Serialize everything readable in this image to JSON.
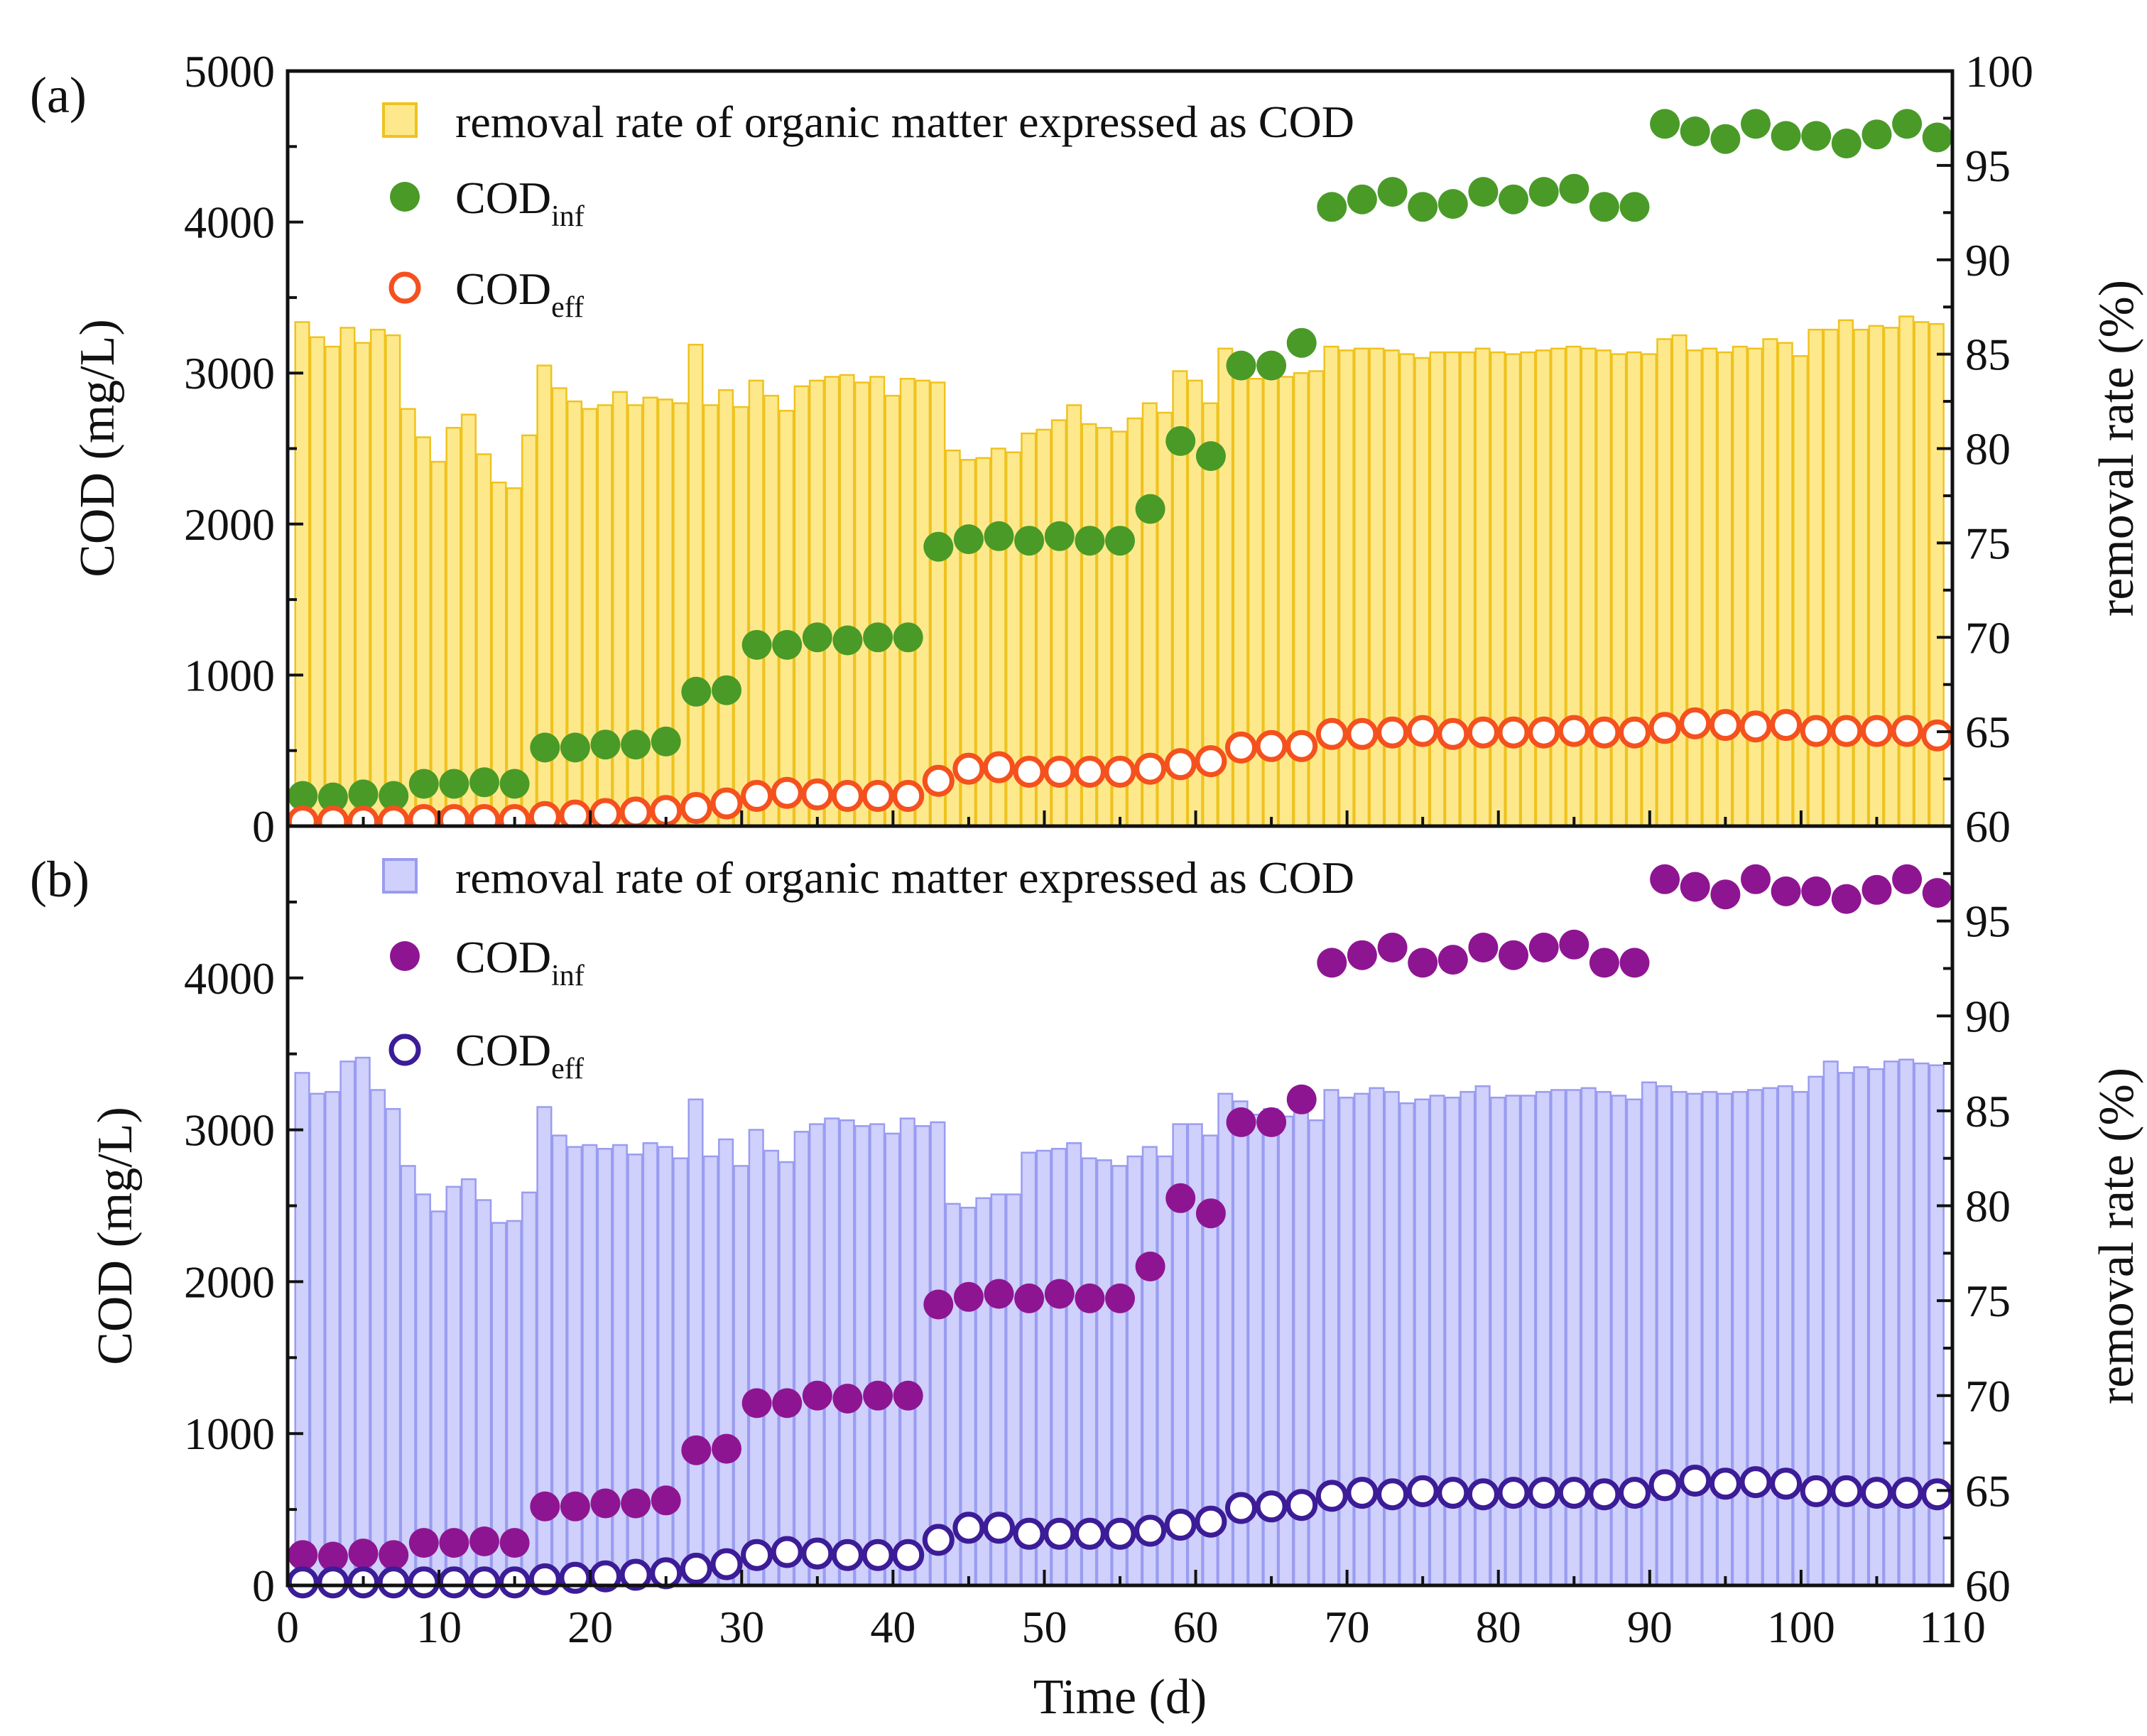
{
  "figure": {
    "xlabel": "Time (d)",
    "xticks": [
      "0",
      "10",
      "20",
      "30",
      "40",
      "50",
      "60",
      "70",
      "80",
      "90",
      "100",
      "110"
    ],
    "xlim": [
      0,
      110
    ]
  },
  "colors": {
    "a_bar_fill": "#fde98c",
    "a_bar_edge": "#efc21e",
    "a_inf": "#4a9a28",
    "a_eff": "#f4511e",
    "b_bar_fill": "#cfd0fb",
    "b_bar_edge": "#9a9cf0",
    "b_inf": "#8e1592",
    "b_eff": "#3c1c97"
  },
  "chart_data": [
    {
      "type": "bar+scatter",
      "panel_label": "(a)",
      "ylabel_left": "COD (mg/L)",
      "ylabel_right": "removal rate (%)",
      "ylim_left": [
        0,
        5000
      ],
      "ylim_right": [
        60,
        100
      ],
      "yticks_left": [
        "0",
        "1000",
        "2000",
        "3000",
        "4000",
        "5000"
      ],
      "yticks_right": [
        "60",
        "65",
        "70",
        "75",
        "80",
        "85",
        "90",
        "95",
        "100"
      ],
      "legend": {
        "bar": "removal rate of organic matter expressed as COD",
        "inf_main": "COD",
        "inf_sub": "inf",
        "eff_main": "COD",
        "eff_sub": "eff"
      },
      "bar_days": [
        1,
        2,
        3,
        4,
        5,
        6,
        7,
        8,
        9,
        10,
        11,
        12,
        13,
        14,
        15,
        16,
        17,
        18,
        19,
        20,
        21,
        22,
        23,
        24,
        25,
        26,
        27,
        28,
        29,
        30,
        31,
        32,
        33,
        34,
        35,
        36,
        37,
        38,
        39,
        40,
        41,
        42,
        43,
        44,
        45,
        46,
        47,
        48,
        49,
        50,
        51,
        52,
        53,
        54,
        55,
        56,
        57,
        58,
        59,
        60,
        61,
        62,
        63,
        64,
        65,
        66,
        67,
        68,
        69,
        70,
        71,
        72,
        73,
        74,
        75,
        76,
        77,
        78,
        79,
        80,
        81,
        82,
        83,
        84,
        85,
        86,
        87,
        88,
        89,
        90,
        91,
        92,
        93,
        94,
        95,
        96,
        97,
        98,
        99,
        100,
        101,
        102,
        103,
        104,
        105,
        106,
        107,
        108,
        109
      ],
      "removal_rate": [
        86.7,
        85.9,
        85.4,
        86.4,
        85.6,
        86.3,
        86.0,
        82.1,
        80.6,
        79.3,
        81.1,
        81.8,
        79.7,
        78.2,
        77.9,
        80.7,
        84.4,
        83.2,
        82.5,
        82.1,
        82.3,
        83.0,
        82.3,
        82.7,
        82.6,
        82.4,
        85.5,
        82.3,
        83.1,
        82.2,
        83.6,
        82.8,
        82.0,
        83.3,
        83.6,
        83.8,
        83.9,
        83.5,
        83.8,
        82.8,
        83.7,
        83.6,
        83.5,
        79.9,
        79.4,
        79.5,
        80.0,
        79.8,
        80.8,
        81.0,
        81.5,
        82.3,
        81.3,
        81.1,
        80.9,
        81.6,
        82.4,
        81.9,
        84.1,
        83.6,
        82.4,
        85.3,
        85.0,
        83.7,
        84.1,
        83.8,
        84.0,
        84.1,
        85.4,
        85.2,
        85.3,
        85.3,
        85.2,
        85.0,
        84.8,
        85.1,
        85.1,
        85.1,
        85.3,
        85.1,
        85.0,
        85.1,
        85.2,
        85.3,
        85.4,
        85.3,
        85.2,
        85.0,
        85.1,
        85.0,
        85.8,
        86.0,
        85.2,
        85.3,
        85.1,
        85.4,
        85.3,
        85.8,
        85.6,
        84.9,
        86.3,
        86.3,
        86.8,
        86.3,
        86.5,
        86.4,
        87.0,
        86.7,
        86.6
      ],
      "inf_days": [
        1,
        3,
        5,
        7,
        9,
        11,
        13,
        15,
        17,
        19,
        21,
        23,
        25,
        27,
        29,
        31,
        33,
        35,
        37,
        39,
        41,
        43,
        45,
        47,
        49,
        51,
        53,
        55,
        57,
        59,
        61,
        63,
        65,
        67,
        69,
        71,
        73,
        75,
        77,
        79,
        81,
        83,
        85,
        87,
        89,
        91,
        93,
        95,
        97,
        99,
        101,
        103,
        105,
        107,
        109
      ],
      "cod_inf": [
        200,
        190,
        210,
        200,
        280,
        280,
        290,
        280,
        520,
        520,
        540,
        540,
        560,
        890,
        900,
        1200,
        1200,
        1250,
        1230,
        1250,
        1250,
        1850,
        1900,
        1920,
        1890,
        1920,
        1890,
        1890,
        2100,
        2550,
        2450,
        3050,
        3050,
        3200,
        4100,
        4150,
        4200,
        4100,
        4120,
        4200,
        4150,
        4200,
        4220,
        4100,
        4100,
        4650,
        4600,
        4550,
        4650,
        4570,
        4570,
        4520,
        4580,
        4650,
        4560
      ],
      "eff_days": [
        1,
        3,
        5,
        7,
        9,
        11,
        13,
        15,
        17,
        19,
        21,
        23,
        25,
        27,
        29,
        31,
        33,
        35,
        37,
        39,
        41,
        43,
        45,
        47,
        49,
        51,
        53,
        55,
        57,
        59,
        61,
        63,
        65,
        67,
        69,
        71,
        73,
        75,
        77,
        79,
        81,
        83,
        85,
        87,
        89,
        91,
        93,
        95,
        97,
        99,
        101,
        103,
        105,
        107,
        109
      ],
      "cod_eff": [
        30,
        30,
        30,
        30,
        40,
        40,
        40,
        40,
        60,
        70,
        80,
        90,
        100,
        120,
        150,
        200,
        220,
        210,
        200,
        200,
        200,
        300,
        380,
        390,
        360,
        360,
        360,
        360,
        380,
        410,
        430,
        520,
        530,
        530,
        610,
        610,
        620,
        630,
        610,
        620,
        620,
        620,
        630,
        620,
        620,
        650,
        680,
        670,
        660,
        670,
        630,
        630,
        630,
        630,
        600
      ]
    },
    {
      "type": "bar+scatter",
      "panel_label": "(b)",
      "ylabel_left": "COD (mg/L)",
      "ylabel_right": "removal rate (%)",
      "ylim_left": [
        0,
        5000
      ],
      "ylim_right": [
        60,
        100
      ],
      "yticks_left": [
        "0",
        "1000",
        "2000",
        "3000",
        "4000"
      ],
      "yticks_right": [
        "60",
        "65",
        "70",
        "75",
        "80",
        "85",
        "90",
        "95"
      ],
      "legend": {
        "bar": "removal rate of organic matter expressed as COD",
        "inf_main": "COD",
        "inf_sub": "inf",
        "eff_main": "COD",
        "eff_sub": "eff"
      },
      "bar_days": [
        1,
        2,
        3,
        4,
        5,
        6,
        7,
        8,
        9,
        10,
        11,
        12,
        13,
        14,
        15,
        16,
        17,
        18,
        19,
        20,
        21,
        22,
        23,
        24,
        25,
        26,
        27,
        28,
        29,
        30,
        31,
        32,
        33,
        34,
        35,
        36,
        37,
        38,
        39,
        40,
        41,
        42,
        43,
        44,
        45,
        46,
        47,
        48,
        49,
        50,
        51,
        52,
        53,
        54,
        55,
        56,
        57,
        58,
        59,
        60,
        61,
        62,
        63,
        64,
        65,
        66,
        67,
        68,
        69,
        70,
        71,
        72,
        73,
        74,
        75,
        76,
        77,
        78,
        79,
        80,
        81,
        82,
        83,
        84,
        85,
        86,
        87,
        88,
        89,
        90,
        91,
        92,
        93,
        94,
        95,
        96,
        97,
        98,
        99,
        100,
        101,
        102,
        103,
        104,
        105,
        106,
        107,
        108,
        109
      ],
      "removal_rate": [
        87.0,
        85.9,
        86.0,
        87.6,
        87.8,
        86.1,
        85.1,
        82.1,
        80.6,
        79.7,
        81.0,
        81.4,
        80.3,
        79.1,
        79.2,
        80.7,
        85.2,
        83.7,
        83.1,
        83.2,
        83.0,
        83.2,
        82.7,
        83.3,
        83.1,
        82.5,
        85.6,
        82.6,
        83.5,
        82.1,
        84.0,
        82.9,
        82.3,
        83.9,
        84.3,
        84.6,
        84.5,
        84.2,
        84.3,
        83.8,
        84.6,
        84.2,
        84.4,
        80.1,
        79.9,
        80.4,
        80.6,
        80.6,
        82.8,
        82.9,
        83.0,
        83.3,
        82.5,
        82.4,
        82.1,
        82.6,
        83.1,
        82.6,
        84.3,
        84.3,
        83.7,
        85.9,
        85.5,
        84.8,
        85.1,
        84.7,
        84.9,
        84.5,
        86.1,
        85.7,
        85.9,
        86.2,
        86.0,
        85.4,
        85.6,
        85.8,
        85.7,
        86.0,
        86.3,
        85.7,
        85.8,
        85.8,
        86.0,
        86.1,
        86.1,
        86.2,
        86.0,
        85.8,
        85.6,
        86.5,
        86.3,
        86.0,
        85.9,
        86.0,
        85.9,
        86.0,
        86.1,
        86.2,
        86.3,
        86.0,
        86.8,
        87.6,
        87.0,
        87.3,
        87.2,
        87.6,
        87.7,
        87.5,
        87.4
      ],
      "inf_days": [
        1,
        3,
        5,
        7,
        9,
        11,
        13,
        15,
        17,
        19,
        21,
        23,
        25,
        27,
        29,
        31,
        33,
        35,
        37,
        39,
        41,
        43,
        45,
        47,
        49,
        51,
        53,
        55,
        57,
        59,
        61,
        63,
        65,
        67,
        69,
        71,
        73,
        75,
        77,
        79,
        81,
        83,
        85,
        87,
        89,
        91,
        93,
        95,
        97,
        99,
        101,
        103,
        105,
        107,
        109
      ],
      "cod_inf": [
        200,
        190,
        210,
        200,
        280,
        280,
        290,
        280,
        520,
        520,
        540,
        540,
        560,
        890,
        900,
        1200,
        1200,
        1250,
        1230,
        1250,
        1250,
        1850,
        1900,
        1920,
        1890,
        1920,
        1890,
        1890,
        2100,
        2550,
        2450,
        3050,
        3050,
        3200,
        4100,
        4150,
        4200,
        4100,
        4120,
        4200,
        4150,
        4200,
        4220,
        4100,
        4100,
        4650,
        4600,
        4550,
        4650,
        4570,
        4570,
        4520,
        4580,
        4650,
        4560
      ],
      "eff_days": [
        1,
        3,
        5,
        7,
        9,
        11,
        13,
        15,
        17,
        19,
        21,
        23,
        25,
        27,
        29,
        31,
        33,
        35,
        37,
        39,
        41,
        43,
        45,
        47,
        49,
        51,
        53,
        55,
        57,
        59,
        61,
        63,
        65,
        67,
        69,
        71,
        73,
        75,
        77,
        79,
        81,
        83,
        85,
        87,
        89,
        91,
        93,
        95,
        97,
        99,
        101,
        103,
        105,
        107,
        109
      ],
      "cod_eff": [
        20,
        20,
        20,
        20,
        20,
        20,
        20,
        20,
        40,
        50,
        60,
        70,
        80,
        110,
        140,
        200,
        220,
        210,
        200,
        200,
        200,
        300,
        380,
        380,
        340,
        340,
        340,
        340,
        360,
        400,
        420,
        510,
        520,
        530,
        590,
        610,
        600,
        620,
        610,
        600,
        610,
        610,
        610,
        600,
        610,
        660,
        690,
        670,
        680,
        670,
        620,
        620,
        610,
        610,
        600
      ]
    }
  ]
}
